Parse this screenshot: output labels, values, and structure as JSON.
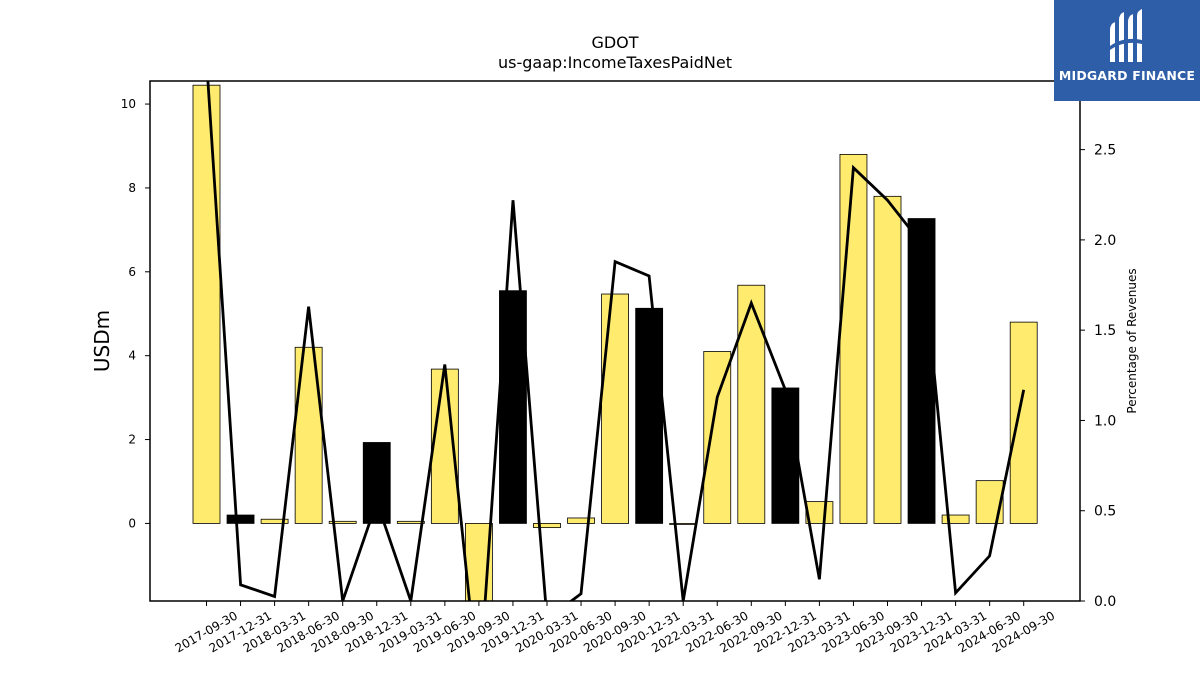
{
  "chart_data": {
    "type": "bar",
    "title": "GDOT",
    "subtitle": "us-gaap:IncomeTaxesPaidNet",
    "ylabel": "USDm",
    "y2label": "Percentage of Revenues",
    "ylim": [
      -1.85,
      10.55
    ],
    "y2lim": [
      0.0,
      2.88
    ],
    "yticks": [
      0,
      2,
      4,
      6,
      8,
      10
    ],
    "y2ticks": [
      0.0,
      0.5,
      1.0,
      1.5,
      2.0,
      2.5
    ],
    "y2tick_labels": [
      "0.0",
      "0.5",
      "1.0",
      "1.5",
      "2.0",
      "2.5"
    ],
    "categories": [
      "2017-09-30",
      "2017-12-31",
      "2018-03-31",
      "2018-06-30",
      "2018-09-30",
      "2018-12-31",
      "2019-03-31",
      "2019-06-30",
      "2019-09-30",
      "2019-12-31",
      "2020-03-31",
      "2020-06-30",
      "2020-09-30",
      "2020-12-31",
      "2022-03-31",
      "2022-06-30",
      "2022-09-30",
      "2022-12-31",
      "2023-03-31",
      "2023-06-30",
      "2023-09-30",
      "2023-12-31",
      "2024-03-31",
      "2024-06-30",
      "2024-09-30"
    ],
    "series": [
      {
        "kind": "bar",
        "values": [
          10.45,
          0.2,
          0.1,
          4.2,
          0.05,
          1.93,
          0.05,
          3.68,
          -1.9,
          5.55,
          -0.1,
          0.13,
          5.47,
          5.13,
          0.0,
          4.1,
          5.68,
          3.23,
          0.52,
          8.8,
          7.8,
          7.27,
          0.2,
          1.02,
          4.8
        ],
        "colors": [
          "#ffeb6e",
          "#000000",
          "#ffeb6e",
          "#ffeb6e",
          "#ffeb6e",
          "#000000",
          "#ffeb6e",
          "#ffeb6e",
          "#ffeb6e",
          "#000000",
          "#ffeb6e",
          "#ffeb6e",
          "#ffeb6e",
          "#000000",
          "#ffeb6e",
          "#ffeb6e",
          "#ffeb6e",
          "#000000",
          "#ffeb6e",
          "#ffeb6e",
          "#ffeb6e",
          "#000000",
          "#ffeb6e",
          "#ffeb6e",
          "#ffeb6e"
        ]
      },
      {
        "kind": "line",
        "axis": "right",
        "color": "#000000",
        "values": [
          3.0,
          0.09,
          0.025,
          1.63,
          0.0,
          0.55,
          0.0,
          1.31,
          -0.5,
          2.22,
          -0.1,
          0.04,
          1.88,
          1.8,
          0.0,
          1.13,
          1.65,
          1.17,
          0.12,
          2.4,
          2.22,
          1.98,
          0.045,
          0.25,
          1.17
        ]
      }
    ],
    "grid": false
  },
  "logo": {
    "text": "MIDGARD FINANCE"
  }
}
